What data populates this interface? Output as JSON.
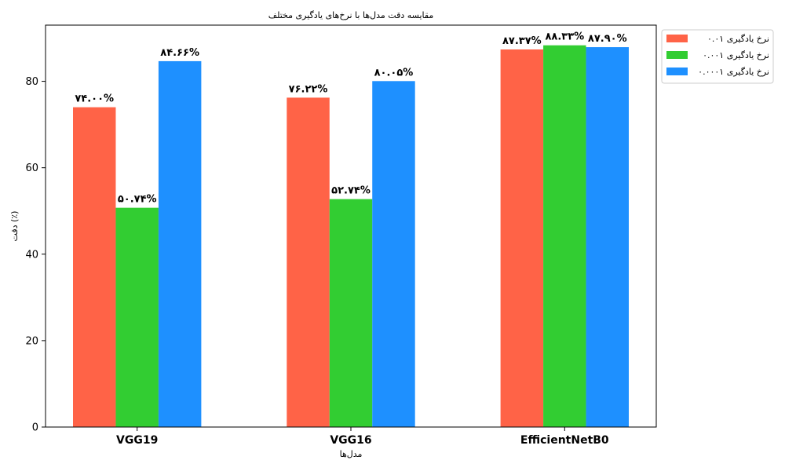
{
  "chart_data": {
    "type": "bar",
    "title": "مقایسه دقت مدل‌ها با نرخ‌های یادگیری مختلف",
    "xlabel": "مدل‌ها",
    "ylabel": "دقت (٪)",
    "ylim": [
      0,
      93
    ],
    "yticks": [
      0,
      20,
      40,
      60,
      80
    ],
    "categories": [
      "VGG19",
      "VGG16",
      "EfficientNetB0"
    ],
    "legend_position": "top-right",
    "grid": false,
    "series": [
      {
        "name": "نرخ یادگیری ۰.۰۱",
        "color": "#FF6347",
        "values": [
          74.0,
          76.22,
          87.37
        ],
        "labels": [
          "۷۴.۰۰%",
          "۷۶.۲۲%",
          "۸۷.۳۷%"
        ]
      },
      {
        "name": "نرخ یادگیری ۰.۰۰۱",
        "color": "#32CD32",
        "values": [
          50.74,
          52.74,
          88.33
        ],
        "labels": [
          "۵۰.۷۴%",
          "۵۲.۷۴%",
          "۸۸.۳۳%"
        ]
      },
      {
        "name": "نرخ یادگیری ۰.۰۰۰۱",
        "color": "#1E90FF",
        "values": [
          84.66,
          80.05,
          87.9
        ],
        "labels": [
          "۸۴.۶۶%",
          "۸۰.۰۵%",
          "۸۷.۹۰%"
        ]
      }
    ]
  }
}
